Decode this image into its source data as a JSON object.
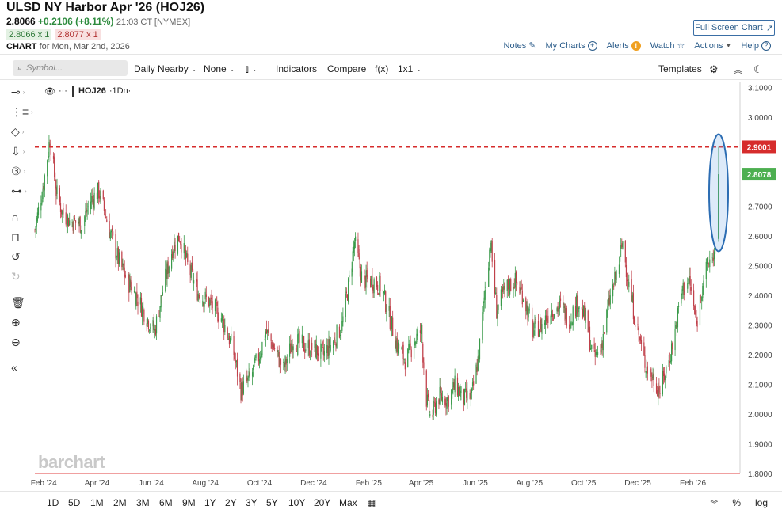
{
  "header": {
    "title": "ULSD NY Harbor Apr '26 (HOJ26)",
    "last": "2.8066",
    "change": "+0.2106 (+8.11%)",
    "time": "21:03 CT [NYMEX]",
    "bid": "2.8066 x 1",
    "ask": "2.8077 x 1",
    "chart_label": "CHART",
    "chart_for": "for Mon, Mar 2nd, 2026",
    "full_screen": "Full Screen Chart",
    "links": {
      "notes": "Notes",
      "my_charts": "My Charts",
      "alerts": "Alerts",
      "watch": "Watch",
      "actions": "Actions",
      "help": "Help"
    }
  },
  "toolbar": {
    "symbol_placeholder": "Symbol...",
    "daily_nearby": "Daily Nearby",
    "none": "None",
    "indicators": "Indicators",
    "compare": "Compare",
    "fx": "f(x)",
    "layout": "1x1",
    "templates": "Templates"
  },
  "legend": {
    "symbol": "HOJ26",
    "interval": "·1Dn·",
    "dots": "···"
  },
  "watermark": "barchart",
  "bottom": {
    "ranges": [
      "1D",
      "5D",
      "1M",
      "2M",
      "3M",
      "6M",
      "9M",
      "1Y",
      "2Y",
      "3Y",
      "5Y",
      "10Y",
      "20Y",
      "Max"
    ],
    "percent": "%",
    "log": "log"
  },
  "colors": {
    "up": "#3a9a4a",
    "down": "#c0404a",
    "dashed": "#d62c2c",
    "ellipse": "#2c6db3",
    "last_badge": "#4caf50"
  },
  "chart_data": {
    "type": "candlestick",
    "x_tick_labels": [
      "Feb '24",
      "Apr '24",
      "Jun '24",
      "Aug '24",
      "Oct '24",
      "Dec '24",
      "Feb '25",
      "Apr '25",
      "Jun '25",
      "Aug '25",
      "Oct '25",
      "Dec '25",
      "Feb '26"
    ],
    "y_tick_labels": [
      "3.1000",
      "3.0000",
      "2.9000",
      "2.8000",
      "2.7000",
      "2.6000",
      "2.5000",
      "2.4000",
      "2.3000",
      "2.2000",
      "2.1000",
      "2.0000",
      "1.9000",
      "1.8000"
    ],
    "y_ticks": [
      3.1,
      3.0,
      2.9,
      2.8,
      2.7,
      2.6,
      2.5,
      2.4,
      2.3,
      2.2,
      2.1,
      2.0,
      1.9,
      1.8
    ],
    "ylim": [
      1.8,
      3.12
    ],
    "horizontal_line": {
      "value": 2.9001,
      "label": "2.9001",
      "style": "dashed"
    },
    "last_price": {
      "value": 2.8078,
      "label": "2.8078"
    },
    "anchors": [
      [
        "2024-01-22",
        2.62
      ],
      [
        "2024-02-01",
        2.78
      ],
      [
        "2024-02-08",
        2.93
      ],
      [
        "2024-02-15",
        2.75
      ],
      [
        "2024-02-22",
        2.68
      ],
      [
        "2024-03-01",
        2.65
      ],
      [
        "2024-03-15",
        2.64
      ],
      [
        "2024-03-25",
        2.72
      ],
      [
        "2024-04-03",
        2.75
      ],
      [
        "2024-04-15",
        2.62
      ],
      [
        "2024-04-25",
        2.52
      ],
      [
        "2024-05-05",
        2.45
      ],
      [
        "2024-05-15",
        2.4
      ],
      [
        "2024-05-28",
        2.32
      ],
      [
        "2024-06-05",
        2.28
      ],
      [
        "2024-06-15",
        2.43
      ],
      [
        "2024-06-25",
        2.56
      ],
      [
        "2024-07-03",
        2.6
      ],
      [
        "2024-07-12",
        2.5
      ],
      [
        "2024-07-25",
        2.4
      ],
      [
        "2024-08-05",
        2.38
      ],
      [
        "2024-08-20",
        2.32
      ],
      [
        "2024-09-01",
        2.22
      ],
      [
        "2024-09-10",
        2.08
      ],
      [
        "2024-09-20",
        2.12
      ],
      [
        "2024-10-01",
        2.2
      ],
      [
        "2024-10-08",
        2.28
      ],
      [
        "2024-10-18",
        2.22
      ],
      [
        "2024-10-28",
        2.15
      ],
      [
        "2024-11-08",
        2.25
      ],
      [
        "2024-11-20",
        2.23
      ],
      [
        "2024-12-01",
        2.22
      ],
      [
        "2024-12-12",
        2.2
      ],
      [
        "2024-12-22",
        2.24
      ],
      [
        "2025-01-02",
        2.3
      ],
      [
        "2025-01-10",
        2.45
      ],
      [
        "2025-01-16",
        2.58
      ],
      [
        "2025-01-25",
        2.45
      ],
      [
        "2025-02-05",
        2.45
      ],
      [
        "2025-02-15",
        2.43
      ],
      [
        "2025-02-25",
        2.32
      ],
      [
        "2025-03-05",
        2.23
      ],
      [
        "2025-03-15",
        2.18
      ],
      [
        "2025-03-25",
        2.25
      ],
      [
        "2025-04-01",
        2.28
      ],
      [
        "2025-04-07",
        2.05
      ],
      [
        "2025-04-12",
        1.98
      ],
      [
        "2025-04-20",
        2.06
      ],
      [
        "2025-05-01",
        2.05
      ],
      [
        "2025-05-10",
        2.1
      ],
      [
        "2025-05-18",
        2.05
      ],
      [
        "2025-05-28",
        2.06
      ],
      [
        "2025-06-05",
        2.2
      ],
      [
        "2025-06-12",
        2.42
      ],
      [
        "2025-06-18",
        2.58
      ],
      [
        "2025-06-25",
        2.35
      ],
      [
        "2025-07-05",
        2.42
      ],
      [
        "2025-07-15",
        2.45
      ],
      [
        "2025-07-25",
        2.4
      ],
      [
        "2025-08-05",
        2.28
      ],
      [
        "2025-08-15",
        2.3
      ],
      [
        "2025-08-25",
        2.35
      ],
      [
        "2025-09-05",
        2.36
      ],
      [
        "2025-09-15",
        2.32
      ],
      [
        "2025-09-25",
        2.38
      ],
      [
        "2025-10-05",
        2.3
      ],
      [
        "2025-10-12",
        2.18
      ],
      [
        "2025-10-20",
        2.22
      ],
      [
        "2025-10-30",
        2.38
      ],
      [
        "2025-11-08",
        2.48
      ],
      [
        "2025-11-14",
        2.58
      ],
      [
        "2025-11-20",
        2.45
      ],
      [
        "2025-11-28",
        2.32
      ],
      [
        "2025-12-08",
        2.18
      ],
      [
        "2025-12-18",
        2.12
      ],
      [
        "2025-12-26",
        2.08
      ],
      [
        "2026-01-05",
        2.18
      ],
      [
        "2026-01-12",
        2.28
      ],
      [
        "2026-01-20",
        2.42
      ],
      [
        "2026-01-28",
        2.45
      ],
      [
        "2026-02-05",
        2.3
      ],
      [
        "2026-02-12",
        2.45
      ],
      [
        "2026-02-20",
        2.52
      ],
      [
        "2026-02-27",
        2.55
      ]
    ],
    "last_candle": {
      "date": "2026-03-02",
      "open": 2.59,
      "high": 2.9,
      "low": 2.58,
      "close": 2.8078
    },
    "annotation": {
      "shape": "ellipse",
      "around": "last candle"
    }
  }
}
